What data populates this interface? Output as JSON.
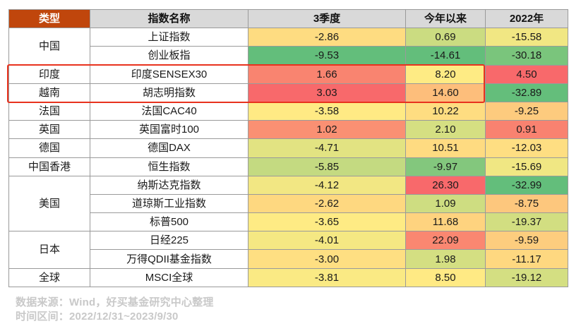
{
  "headers": [
    "类型",
    "指数名称",
    "3季度",
    "今年以来",
    "2022年"
  ],
  "groups": [
    {
      "cat": "中国",
      "rows": [
        {
          "name": "上证指数",
          "q3": "-2.86",
          "ytd": "0.69",
          "y2022": "-15.58"
        },
        {
          "name": "创业板指",
          "q3": "-9.53",
          "ytd": "-14.61",
          "y2022": "-30.18"
        }
      ]
    },
    {
      "cat": "印度",
      "rows": [
        {
          "name": "印度SENSEX30",
          "q3": "1.66",
          "ytd": "8.20",
          "y2022": "4.50"
        }
      ]
    },
    {
      "cat": "越南",
      "rows": [
        {
          "name": "胡志明指数",
          "q3": "3.03",
          "ytd": "14.60",
          "y2022": "-32.89"
        }
      ]
    },
    {
      "cat": "法国",
      "rows": [
        {
          "name": "法国CAC40",
          "q3": "-3.58",
          "ytd": "10.22",
          "y2022": "-9.25"
        }
      ]
    },
    {
      "cat": "英国",
      "rows": [
        {
          "name": "英国富时100",
          "q3": "1.02",
          "ytd": "2.10",
          "y2022": "0.91"
        }
      ]
    },
    {
      "cat": "德国",
      "rows": [
        {
          "name": "德国DAX",
          "q3": "-4.71",
          "ytd": "10.51",
          "y2022": "-12.03"
        }
      ]
    },
    {
      "cat": "中国香港",
      "rows": [
        {
          "name": "恒生指数",
          "q3": "-5.85",
          "ytd": "-9.97",
          "y2022": "-15.69"
        }
      ]
    },
    {
      "cat": "美国",
      "rows": [
        {
          "name": "纳斯达克指数",
          "q3": "-4.12",
          "ytd": "26.30",
          "y2022": "-32.99"
        },
        {
          "name": "道琼斯工业指数",
          "q3": "-2.62",
          "ytd": "1.09",
          "y2022": "-8.75"
        },
        {
          "name": "标普500",
          "q3": "-3.65",
          "ytd": "11.68",
          "y2022": "-19.37"
        }
      ]
    },
    {
      "cat": "日本",
      "rows": [
        {
          "name": "日经225",
          "q3": "-4.01",
          "ytd": "22.09",
          "y2022": "-9.59"
        },
        {
          "name": "万得QDII基金指数",
          "q3": "-3.00",
          "ytd": "1.98",
          "y2022": "-11.17"
        }
      ]
    },
    {
      "cat": "全球",
      "rows": [
        {
          "name": "MSCI全球",
          "q3": "-3.81",
          "ytd": "8.50",
          "y2022": "-19.12"
        }
      ]
    }
  ],
  "colors": {
    "header_type_bg": "#c0460c",
    "header_bg": "#d9d9d9",
    "highlight_border": "#e8321e",
    "scale_low": "#63be7b",
    "scale_mid": "#ffeb84",
    "scale_high": "#f8696b",
    "footer_text": "#c9c9c9"
  },
  "footer": {
    "source": "数据来源：Wind，好买基金研究中心整理",
    "period": "时间区间：2022/12/31~2023/9/30"
  }
}
